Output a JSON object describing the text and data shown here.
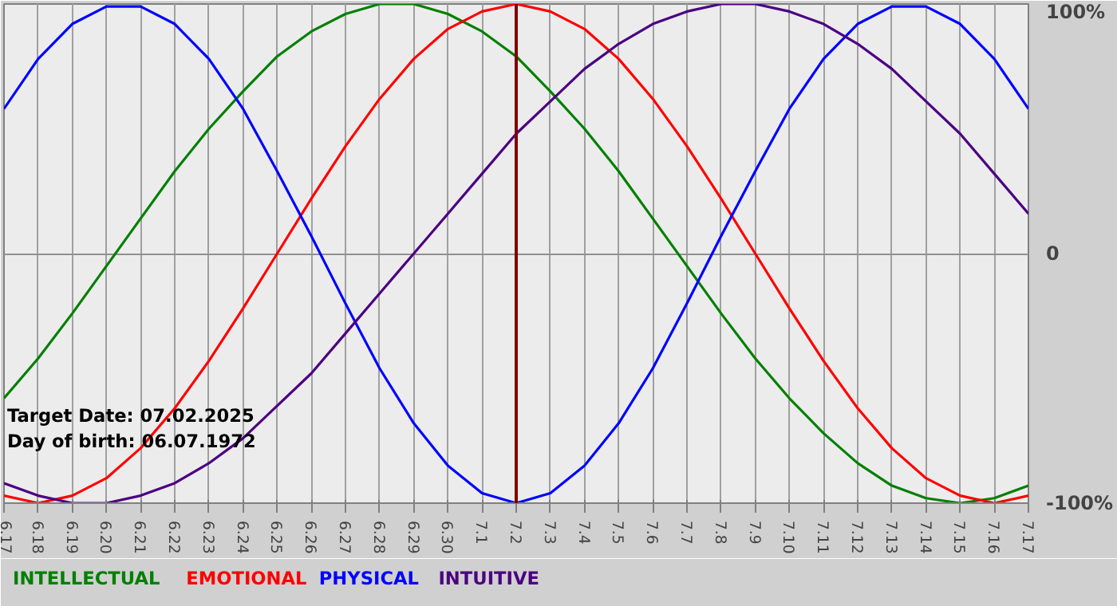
{
  "chart_data": {
    "type": "line",
    "categories": [
      "6.17",
      "6.18",
      "6.19",
      "6.20",
      "6.21",
      "6.22",
      "6.23",
      "6.24",
      "6.25",
      "6.26",
      "6.27",
      "6.28",
      "6.29",
      "6.30",
      "7.1",
      "7.2",
      "7.3",
      "7.4",
      "7.5",
      "7.6",
      "7.7",
      "7.8",
      "7.9",
      "7.10",
      "7.11",
      "7.12",
      "7.13",
      "7.14",
      "7.15",
      "7.16",
      "7.17"
    ],
    "series": [
      {
        "name": "INTELLECTUAL",
        "color": "#008000",
        "values": [
          -58,
          -42,
          -24,
          -5,
          14,
          33,
          50,
          65,
          79,
          89,
          96,
          100,
          100,
          96,
          89,
          79,
          65,
          50,
          33,
          14,
          -5,
          -24,
          -42,
          -58,
          -72,
          -84,
          -93,
          -98,
          -100,
          -98,
          -93
        ]
      },
      {
        "name": "EMOTIONAL",
        "color": "#ff0000",
        "values": [
          -97,
          -100,
          -97,
          -90,
          -78,
          -62,
          -43,
          -22,
          0,
          22,
          43,
          62,
          78,
          90,
          97,
          100,
          97,
          90,
          78,
          62,
          43,
          22,
          0,
          -22,
          -43,
          -62,
          -78,
          -90,
          -97,
          -100,
          -97
        ]
      },
      {
        "name": "PHYSICAL",
        "color": "#0000ff",
        "values": [
          58,
          78,
          92,
          99,
          99,
          92,
          78,
          58,
          33,
          7,
          -20,
          -46,
          -68,
          -85,
          -96,
          -100,
          -96,
          -85,
          -68,
          -46,
          -20,
          7,
          33,
          58,
          78,
          92,
          99,
          99,
          92,
          78,
          58
        ]
      },
      {
        "name": "INTUITIVE",
        "color": "#4b0082",
        "values": [
          -92,
          -97,
          -100,
          -100,
          -97,
          -92,
          -84,
          -74,
          -61,
          -48,
          -32,
          -16,
          0,
          16,
          32,
          48,
          61,
          74,
          84,
          92,
          97,
          100,
          100,
          97,
          92,
          84,
          74,
          61,
          48,
          32,
          16
        ]
      }
    ],
    "ylim": [
      -100,
      100
    ],
    "yticks": [
      {
        "value": -100,
        "label": "-100%"
      },
      0,
      {
        "value": 100,
        "label": "100%"
      }
    ],
    "ref_lines": [
      {
        "axis": "x",
        "value": "7.2",
        "color": "#800000"
      }
    ],
    "annotations": [
      "Target Date: 07.02.2025",
      "Day of birth: 06.07.1972"
    ],
    "grid": true
  }
}
